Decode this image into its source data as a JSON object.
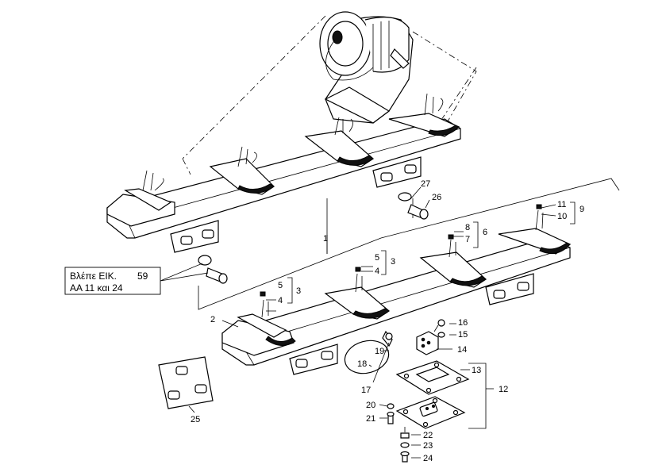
{
  "reference_box": {
    "line1": "Βλέπε ΕΙΚ.",
    "line1_num": "59",
    "line2": "AA 11 και 24"
  },
  "callouts": {
    "c1": "1",
    "c2": "2",
    "c3a": "3",
    "c3b": "3",
    "c4a": "4",
    "c4b": "4",
    "c5a": "5",
    "c5b": "5",
    "c6": "6",
    "c7": "7",
    "c8": "8",
    "c9": "9",
    "c10": "10",
    "c11": "11",
    "c12": "12",
    "c13": "13",
    "c14": "14",
    "c15": "15",
    "c16": "16",
    "c17": "17",
    "c18": "18",
    "c19": "19",
    "c20": "20",
    "c21": "21",
    "c22": "22",
    "c23": "23",
    "c24": "24",
    "c25": "25",
    "c26": "26",
    "c27": "27"
  }
}
